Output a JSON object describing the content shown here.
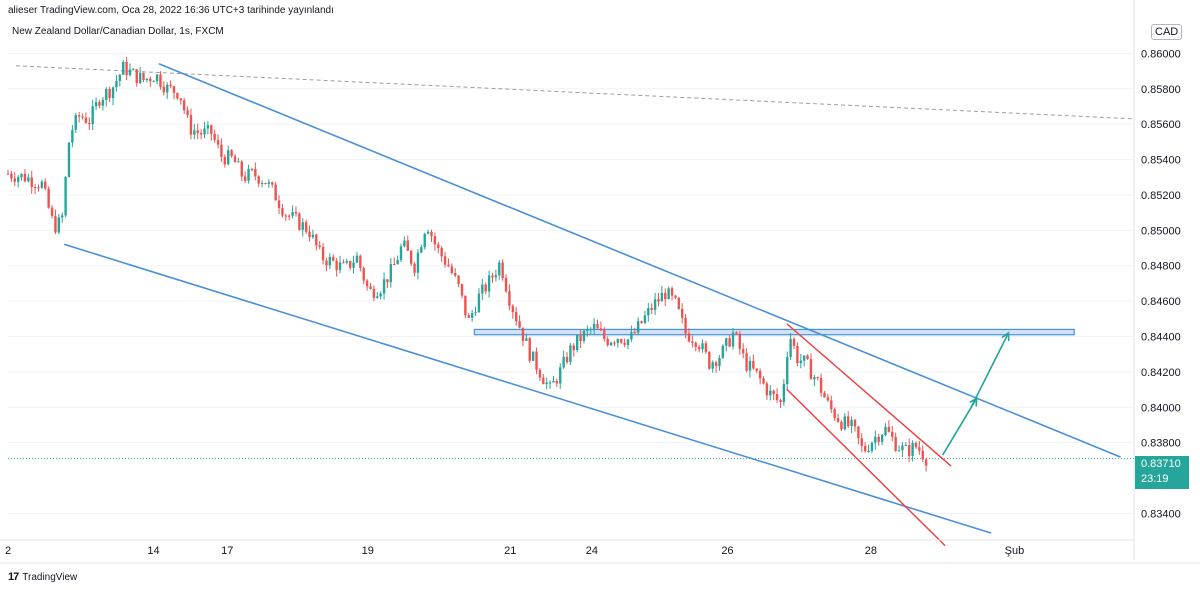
{
  "header": {
    "published": "alieser TradingView.com, Oca 28, 2022 16:36 UTC+3 tarihinde yayınlandı",
    "symbol": "New Zealand Dollar/Canadian Dollar, 1s, FXCM"
  },
  "currency_badge": "CAD",
  "last_price": {
    "value": "0.83710",
    "countdown": "23:19"
  },
  "footer": {
    "logo_mark": "17",
    "brand": "TradingView"
  },
  "colors": {
    "up": "#26a69a",
    "down": "#ef5350",
    "channel": "#4a90d9",
    "inner_channel": "#ef3b3b",
    "arrow": "#1fa59a",
    "zone_fill": "#cfe2f7",
    "grid": "#f0f3fa",
    "dashed_trend": "#9e9e9e"
  },
  "chart_data": {
    "type": "candlestick",
    "ylim": [
      0.8325,
      0.862
    ],
    "yticks": [
      "0.86000",
      "0.85800",
      "0.85600",
      "0.85400",
      "0.85200",
      "0.85000",
      "0.84800",
      "0.84600",
      "0.84400",
      "0.84200",
      "0.84000",
      "0.83800",
      "0.83400"
    ],
    "ytick_values": [
      0.86,
      0.858,
      0.856,
      0.854,
      0.852,
      0.85,
      0.848,
      0.846,
      0.844,
      0.842,
      0.84,
      0.838,
      0.834
    ],
    "xticks": [
      "2",
      "14",
      "17",
      "19",
      "21",
      "24",
      "26",
      "28",
      "Şub"
    ],
    "xtick_positions": [
      0,
      146,
      220,
      361,
      504,
      586,
      722,
      866,
      1010
    ],
    "xlim": [
      0,
      1130
    ],
    "price_path": [
      [
        0,
        0.8532
      ],
      [
        18,
        0.853
      ],
      [
        34,
        0.8526
      ],
      [
        46,
        0.8502
      ],
      [
        54,
        0.8505
      ],
      [
        62,
        0.8555
      ],
      [
        72,
        0.8565
      ],
      [
        82,
        0.8562
      ],
      [
        92,
        0.8575
      ],
      [
        104,
        0.858
      ],
      [
        116,
        0.8592
      ],
      [
        126,
        0.8588
      ],
      [
        136,
        0.8585
      ],
      [
        148,
        0.8588
      ],
      [
        160,
        0.858
      ],
      [
        172,
        0.8578
      ],
      [
        182,
        0.8558
      ],
      [
        192,
        0.8555
      ],
      [
        204,
        0.8555
      ],
      [
        214,
        0.8542
      ],
      [
        226,
        0.854
      ],
      [
        236,
        0.853
      ],
      [
        246,
        0.8532
      ],
      [
        258,
        0.8528
      ],
      [
        268,
        0.852
      ],
      [
        278,
        0.851
      ],
      [
        290,
        0.8505
      ],
      [
        302,
        0.85
      ],
      [
        314,
        0.8485
      ],
      [
        326,
        0.8482
      ],
      [
        338,
        0.8478
      ],
      [
        350,
        0.8485
      ],
      [
        362,
        0.8465
      ],
      [
        374,
        0.8468
      ],
      [
        386,
        0.8478
      ],
      [
        396,
        0.8492
      ],
      [
        408,
        0.848
      ],
      [
        420,
        0.8505
      ],
      [
        430,
        0.849
      ],
      [
        442,
        0.848
      ],
      [
        452,
        0.8468
      ],
      [
        462,
        0.8448
      ],
      [
        472,
        0.8462
      ],
      [
        482,
        0.847
      ],
      [
        494,
        0.8482
      ],
      [
        504,
        0.846
      ],
      [
        514,
        0.8445
      ],
      [
        524,
        0.843
      ],
      [
        534,
        0.842
      ],
      [
        544,
        0.841
      ],
      [
        554,
        0.842
      ],
      [
        564,
        0.8432
      ],
      [
        576,
        0.844
      ],
      [
        588,
        0.8445
      ],
      [
        600,
        0.8438
      ],
      [
        612,
        0.844
      ],
      [
        624,
        0.8438
      ],
      [
        636,
        0.8448
      ],
      [
        648,
        0.8458
      ],
      [
        660,
        0.8465
      ],
      [
        670,
        0.8458
      ],
      [
        680,
        0.8442
      ],
      [
        692,
        0.8438
      ],
      [
        704,
        0.8425
      ],
      [
        716,
        0.843
      ],
      [
        728,
        0.8442
      ],
      [
        740,
        0.8425
      ],
      [
        752,
        0.8418
      ],
      [
        764,
        0.8408
      ],
      [
        776,
        0.8402
      ],
      [
        784,
        0.8442
      ],
      [
        792,
        0.8428
      ],
      [
        800,
        0.8425
      ],
      [
        812,
        0.8415
      ],
      [
        824,
        0.84
      ],
      [
        836,
        0.8392
      ],
      [
        848,
        0.8388
      ],
      [
        858,
        0.8375
      ],
      [
        868,
        0.8382
      ],
      [
        880,
        0.8388
      ],
      [
        890,
        0.838
      ],
      [
        900,
        0.8375
      ],
      [
        912,
        0.8378
      ],
      [
        922,
        0.8371
      ]
    ],
    "annotations": {
      "outer_channel_top": [
        [
          152,
          0.8594
        ],
        [
          1116,
          0.8372
        ]
      ],
      "outer_channel_bottom": [
        [
          57,
          0.8492
        ],
        [
          986,
          0.8329
        ]
      ],
      "dashed_trendline": [
        [
          8,
          0.8593
        ],
        [
          1130,
          0.8563
        ]
      ],
      "resistance_zone": {
        "x": [
          468,
          1070
        ],
        "y": [
          0.8441,
          0.8444
        ]
      },
      "inner_channel_top": [
        [
          782,
          0.8447
        ],
        [
          946,
          0.8367
        ]
      ],
      "inner_channel_bottom": [
        [
          782,
          0.841
        ],
        [
          940,
          0.8322
        ]
      ],
      "projection_arrow_1": [
        [
          938,
          0.8373
        ],
        [
          972,
          0.8405
        ]
      ],
      "projection_arrow_2": [
        [
          944,
          0.8375
        ],
        [
          1004,
          0.8442
        ]
      ],
      "last_price_line": 0.8371
    }
  }
}
